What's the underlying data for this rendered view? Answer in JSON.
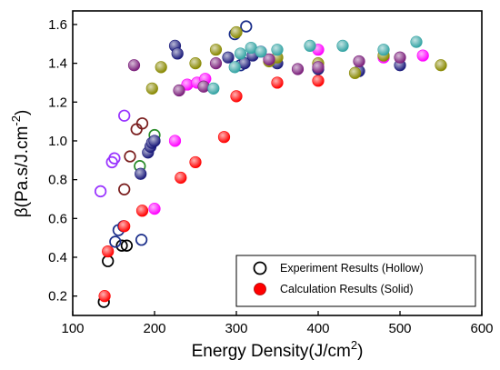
{
  "chart_data": {
    "type": "scatter",
    "xlabel_main": "Energy Density(J/cm",
    "xlabel_sup": "2",
    "xlabel_end": ")",
    "ylabel_main": "β(Pa.s/J.cm",
    "ylabel_sup": "-2",
    "ylabel_end": ")",
    "xlim": [
      100,
      600
    ],
    "ylim": [
      0.1,
      1.67
    ],
    "xticks": [
      100,
      200,
      300,
      400,
      500,
      600
    ],
    "yticks": [
      0.2,
      0.4,
      0.6,
      0.8,
      1.0,
      1.2,
      1.4,
      1.6
    ],
    "ytick_labels": [
      "0.2",
      "0.4",
      "0.6",
      "0.8",
      "1.0",
      "1.2",
      "1.4",
      "1.6"
    ],
    "grid": false,
    "legend_position": "bottom-right",
    "legend": [
      {
        "label": "Experiment Results (Hollow)",
        "style": "hollow",
        "color": "#000000"
      },
      {
        "label": "Calculation Results (Solid)",
        "style": "solid",
        "color": "#ff0000"
      }
    ],
    "series": [
      {
        "style": "hollow",
        "color": "#000000",
        "points": [
          [
            138,
            0.17
          ],
          [
            143,
            0.38
          ],
          [
            160,
            0.46
          ],
          [
            166,
            0.46
          ]
        ]
      },
      {
        "style": "hollow",
        "color": "#7a1e1e",
        "points": [
          [
            163,
            0.75
          ],
          [
            170,
            0.92
          ],
          [
            185,
            1.09
          ],
          [
            178,
            1.06
          ]
        ]
      },
      {
        "style": "hollow",
        "color": "#1a2e8a",
        "points": [
          [
            152,
            0.48
          ],
          [
            156,
            0.54
          ],
          [
            162,
            0.56
          ],
          [
            184,
            0.49
          ],
          [
            298,
            1.55
          ],
          [
            305,
            1.39
          ],
          [
            312,
            1.59
          ]
        ]
      },
      {
        "style": "hollow",
        "color": "#9933ff",
        "points": [
          [
            134,
            0.74
          ],
          [
            148,
            0.89
          ],
          [
            151,
            0.91
          ],
          [
            163,
            1.13
          ]
        ]
      },
      {
        "style": "hollow",
        "color": "#2a8c2a",
        "points": [
          [
            182,
            0.87
          ],
          [
            200,
            1.03
          ]
        ]
      },
      {
        "style": "solid",
        "color": "#ff0000",
        "points": [
          [
            139,
            0.2
          ],
          [
            143,
            0.43
          ],
          [
            163,
            0.56
          ],
          [
            185,
            0.64
          ],
          [
            232,
            0.81
          ],
          [
            250,
            0.89
          ],
          [
            285,
            1.02
          ],
          [
            300,
            1.23
          ],
          [
            350,
            1.3
          ],
          [
            400,
            1.31
          ]
        ]
      },
      {
        "style": "solid",
        "color": "#ff00ff",
        "points": [
          [
            200,
            0.65
          ],
          [
            225,
            1.0
          ],
          [
            240,
            1.29
          ],
          [
            252,
            1.3
          ],
          [
            262,
            1.32
          ],
          [
            330,
            1.46
          ],
          [
            400,
            1.47
          ],
          [
            480,
            1.43
          ],
          [
            528,
            1.44
          ]
        ]
      },
      {
        "style": "solid",
        "color": "#1a1a7a",
        "points": [
          [
            183,
            0.83
          ],
          [
            192,
            0.94
          ],
          [
            195,
            0.97
          ],
          [
            197,
            0.99
          ],
          [
            200,
            1.0
          ],
          [
            225,
            1.49
          ],
          [
            228,
            1.45
          ],
          [
            290,
            1.43
          ],
          [
            310,
            1.4
          ],
          [
            320,
            1.44
          ],
          [
            350,
            1.4
          ],
          [
            400,
            1.37
          ],
          [
            450,
            1.36
          ],
          [
            500,
            1.39
          ]
        ]
      },
      {
        "style": "solid",
        "color": "#888800",
        "points": [
          [
            197,
            1.27
          ],
          [
            208,
            1.38
          ],
          [
            250,
            1.4
          ],
          [
            275,
            1.47
          ],
          [
            300,
            1.56
          ],
          [
            340,
            1.41
          ],
          [
            350,
            1.43
          ],
          [
            400,
            1.4
          ],
          [
            445,
            1.35
          ],
          [
            480,
            1.44
          ],
          [
            550,
            1.39
          ]
        ]
      },
      {
        "style": "solid",
        "color": "#7a1e7a",
        "points": [
          [
            175,
            1.39
          ],
          [
            230,
            1.26
          ],
          [
            260,
            1.28
          ],
          [
            275,
            1.4
          ],
          [
            340,
            1.42
          ],
          [
            375,
            1.37
          ],
          [
            400,
            1.38
          ],
          [
            450,
            1.41
          ],
          [
            500,
            1.43
          ]
        ]
      },
      {
        "style": "solid",
        "color": "#33a3a3",
        "points": [
          [
            272,
            1.27
          ],
          [
            298,
            1.38
          ],
          [
            305,
            1.45
          ],
          [
            318,
            1.48
          ],
          [
            330,
            1.46
          ],
          [
            350,
            1.47
          ],
          [
            390,
            1.49
          ],
          [
            430,
            1.49
          ],
          [
            480,
            1.47
          ],
          [
            520,
            1.51
          ]
        ]
      }
    ]
  }
}
